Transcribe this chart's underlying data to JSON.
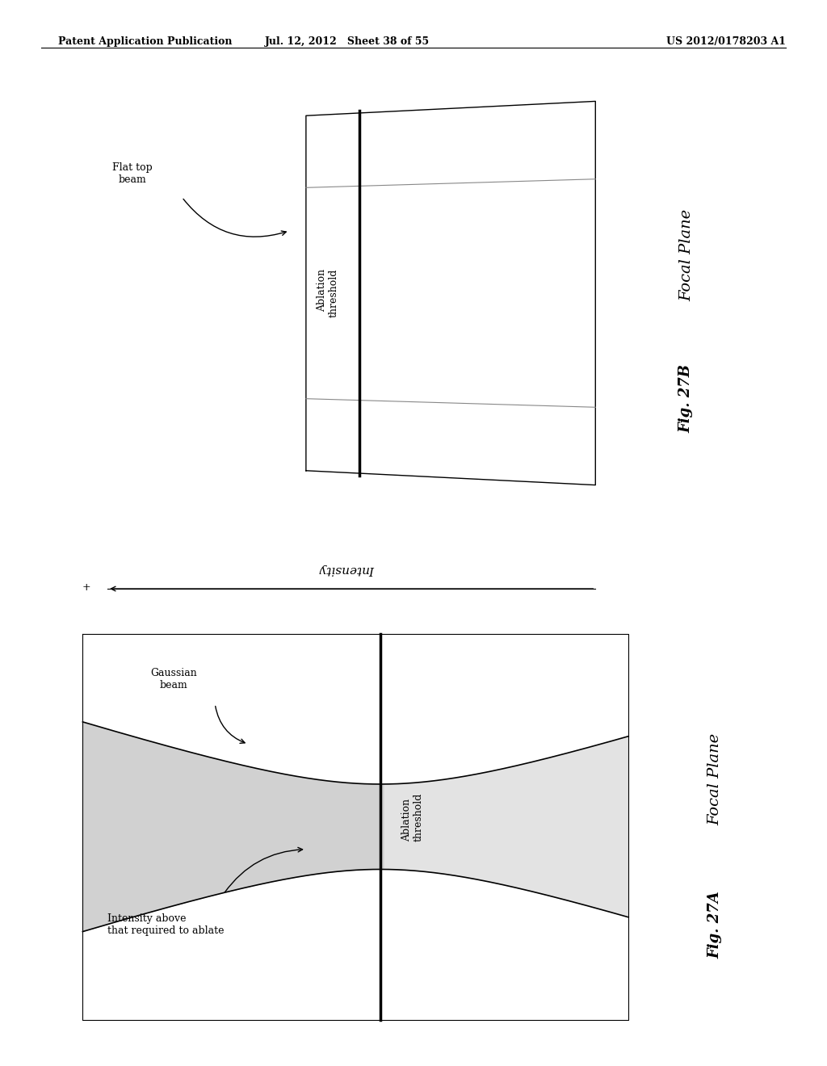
{
  "header_left": "Patent Application Publication",
  "header_center": "Jul. 12, 2012   Sheet 38 of 55",
  "header_right": "US 2012/0178203 A1",
  "header_fontsize": 9,
  "background_color": "#ffffff",
  "fig27b": {
    "title": "Fig. 27B",
    "focal_plane_label": "Focal Plane",
    "ablation_label": "Ablation\nthreshold",
    "flat_top_label": "Flat top\nbeam"
  },
  "fig27a": {
    "title": "Fig. 27A",
    "focal_plane_label": "Focal Plane",
    "ablation_label": "Ablation\nthreshold",
    "gaussian_label": "Gaussian\nbeam",
    "intensity_label": "Intensity",
    "annotation_label": "Intensity above\nthat required to ablate"
  }
}
